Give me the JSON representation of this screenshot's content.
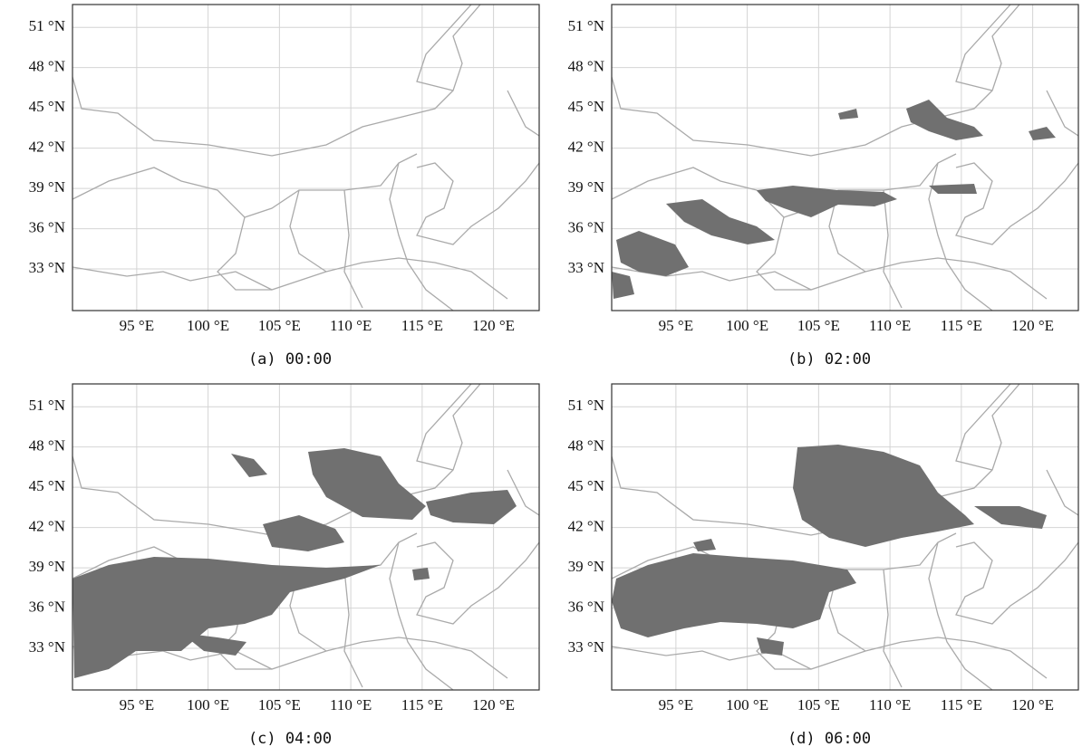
{
  "maps": [
    {
      "caption": "(a) 00:00",
      "xlim": [
        90.5,
        123.2
      ],
      "ylim": [
        29.9,
        52.7
      ],
      "xticks": [
        {
          "value": 95,
          "label": "95 °E"
        },
        {
          "value": 100,
          "label": "100 °E"
        },
        {
          "value": 105,
          "label": "105 °E"
        },
        {
          "value": 110,
          "label": "110 °E"
        },
        {
          "value": 115,
          "label": "115 °E"
        },
        {
          "value": 120,
          "label": "120 °E"
        }
      ],
      "yticks": [
        {
          "value": 33,
          "label": "33 °N"
        },
        {
          "value": 36,
          "label": "36 °N"
        },
        {
          "value": 39,
          "label": "39 °N"
        },
        {
          "value": 42,
          "label": "42 °N"
        },
        {
          "value": 45,
          "label": "45 °N"
        },
        {
          "value": 48,
          "label": "48 °N"
        },
        {
          "value": 51,
          "label": "51 °N"
        }
      ]
    },
    {
      "caption": "(b) 02:00",
      "xlim": [
        90.5,
        123.2
      ],
      "ylim": [
        29.9,
        52.7
      ],
      "xticks": [
        {
          "value": 95,
          "label": "95 °E"
        },
        {
          "value": 100,
          "label": "100 °E"
        },
        {
          "value": 105,
          "label": "105 °E"
        },
        {
          "value": 110,
          "label": "110 °E"
        },
        {
          "value": 115,
          "label": "115 °E"
        },
        {
          "value": 120,
          "label": "120 °E"
        }
      ],
      "yticks": [
        {
          "value": 33,
          "label": "33 °N"
        },
        {
          "value": 36,
          "label": "36 °N"
        },
        {
          "value": 39,
          "label": "39 °N"
        },
        {
          "value": 42,
          "label": "42 °N"
        },
        {
          "value": 45,
          "label": "45 °N"
        },
        {
          "value": 48,
          "label": "48 °N"
        },
        {
          "value": 51,
          "label": "51 °N"
        }
      ]
    },
    {
      "caption": "(c) 04:00",
      "xlim": [
        90.5,
        123.2
      ],
      "ylim": [
        29.9,
        52.7
      ],
      "xticks": [
        {
          "value": 95,
          "label": "95 °E"
        },
        {
          "value": 100,
          "label": "100 °E"
        },
        {
          "value": 105,
          "label": "105 °E"
        },
        {
          "value": 110,
          "label": "110 °E"
        },
        {
          "value": 115,
          "label": "115 °E"
        },
        {
          "value": 120,
          "label": "120 °E"
        }
      ],
      "yticks": [
        {
          "value": 33,
          "label": "33 °N"
        },
        {
          "value": 36,
          "label": "36 °N"
        },
        {
          "value": 39,
          "label": "39 °N"
        },
        {
          "value": 42,
          "label": "42 °N"
        },
        {
          "value": 45,
          "label": "45 °N"
        },
        {
          "value": 48,
          "label": "48 °N"
        },
        {
          "value": 51,
          "label": "51 °N"
        }
      ]
    },
    {
      "caption": "(d) 06:00",
      "xlim": [
        90.5,
        123.2
      ],
      "ylim": [
        29.9,
        52.7
      ],
      "xticks": [
        {
          "value": 95,
          "label": "95 °E"
        },
        {
          "value": 100,
          "label": "100 °E"
        },
        {
          "value": 105,
          "label": "105 °E"
        },
        {
          "value": 110,
          "label": "110 °E"
        },
        {
          "value": 115,
          "label": "115 °E"
        },
        {
          "value": 120,
          "label": "120 °E"
        }
      ],
      "yticks": [
        {
          "value": 33,
          "label": "33 °N"
        },
        {
          "value": 36,
          "label": "36 °N"
        },
        {
          "value": 39,
          "label": "39 °N"
        },
        {
          "value": 42,
          "label": "42 °N"
        },
        {
          "value": 45,
          "label": "45 °N"
        },
        {
          "value": 48,
          "label": "48 °N"
        },
        {
          "value": 51,
          "label": "51 °N"
        }
      ]
    }
  ]
}
